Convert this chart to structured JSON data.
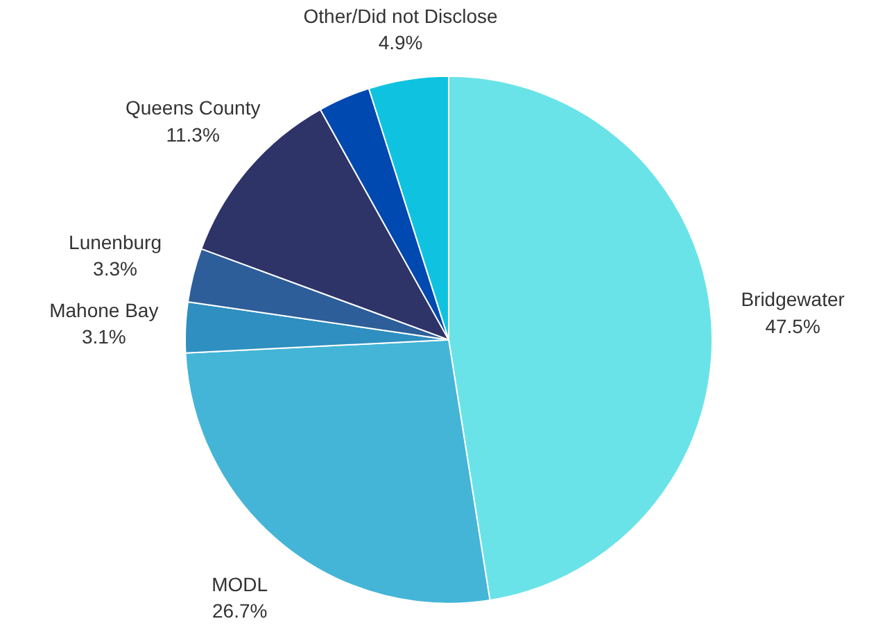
{
  "chart_data": {
    "type": "pie",
    "categories": [
      "Bridgewater",
      "MODL",
      "Mahone Bay",
      "Lunenburg",
      "Queens County",
      null,
      "Other/Did not Disclose"
    ],
    "values": [
      47.5,
      26.7,
      3.1,
      3.3,
      11.3,
      3.2,
      4.9
    ],
    "value_labels": [
      "47.5%",
      "26.7%",
      "3.1%",
      "3.3%",
      "11.3%",
      null,
      "4.9%"
    ],
    "colors": [
      "#6ae3e8",
      "#44b5d6",
      "#2e8fc0",
      "#2e5e99",
      "#2e3368",
      "#0049b0",
      "#0fc3e0"
    ]
  }
}
